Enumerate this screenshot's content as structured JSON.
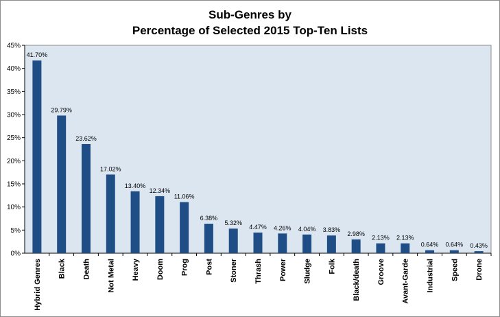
{
  "chart_data": {
    "type": "bar",
    "title_lines": [
      "Sub-Genres by",
      "Percentage of Selected 2015 Top-Ten Lists"
    ],
    "xlabel": "",
    "ylabel": "",
    "ylim": [
      0,
      45
    ],
    "yticks": [
      0,
      5,
      10,
      15,
      20,
      25,
      30,
      35,
      40,
      45
    ],
    "ytick_labels": [
      "0%",
      "5%",
      "10%",
      "15%",
      "20%",
      "25%",
      "30%",
      "35%",
      "40%",
      "45%"
    ],
    "grid": false,
    "legend": "none",
    "categories": [
      "Hybrid Genres",
      "Black",
      "Death",
      "Not Metal",
      "Heavy",
      "Doom",
      "Prog",
      "Post",
      "Stoner",
      "Thrash",
      "Power",
      "Sludge",
      "Folk",
      "Black/death",
      "Groove",
      "Avant-Garde",
      "Industrial",
      "Speed",
      "Drone"
    ],
    "values": [
      41.7,
      29.79,
      23.62,
      17.02,
      13.4,
      12.34,
      11.06,
      6.38,
      5.32,
      4.47,
      4.26,
      4.04,
      3.83,
      2.98,
      2.13,
      2.13,
      0.64,
      0.64,
      0.43
    ],
    "value_labels": [
      "41.70%",
      "29.79%",
      "23.62%",
      "17.02%",
      "13.40%",
      "12.34%",
      "11.06%",
      "6.38%",
      "5.32%",
      "4.47%",
      "4.26%",
      "4.04%",
      "3.83%",
      "2.98%",
      "2.13%",
      "2.13%",
      "0.64%",
      "0.64%",
      "0.43%"
    ],
    "colors": {
      "bar": "#1f4e87",
      "plot_background": "#dce6f1",
      "axis": "#000000"
    }
  }
}
